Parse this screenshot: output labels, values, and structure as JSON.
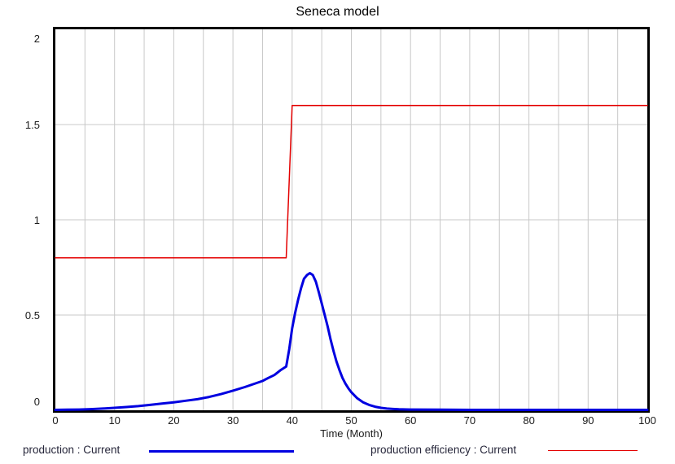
{
  "title": "Seneca model",
  "colors": {
    "background": "#ffffff",
    "axis_frame": "#000000",
    "grid": "#c8c8c8",
    "tick_text": "#1a1a1a",
    "production_line": "#0000e0",
    "efficiency_line": "#e40000"
  },
  "legend": [
    {
      "label": "production : Current",
      "color": "#0000e0",
      "line_width": 3
    },
    {
      "label": "production efficiency : Current",
      "color": "#e40000",
      "line_width": 1.5
    }
  ],
  "chart_data": {
    "type": "line",
    "title": "Seneca model",
    "xlabel": "Time (Month)",
    "ylabel": "",
    "xlim": [
      0,
      100
    ],
    "ylim": [
      0,
      2
    ],
    "x_tick_labels": [
      "0",
      "10",
      "20",
      "30",
      "40",
      "50",
      "60",
      "70",
      "80",
      "90",
      "100"
    ],
    "x_tick_values": [
      0,
      10,
      20,
      30,
      40,
      50,
      60,
      70,
      80,
      90,
      100
    ],
    "y_tick_labels": [
      "2",
      "1.5",
      "1",
      "0.5",
      "0"
    ],
    "y_tick_values": [
      2,
      1.5,
      1,
      0.5,
      0
    ],
    "x_grid_step": 5,
    "y_grid_lines": [
      0.5,
      1,
      1.5
    ],
    "grid": true,
    "legend_position": "bottom",
    "series": [
      {
        "name": "production : Current",
        "color": "#0000e0",
        "line_width": 3,
        "x": [
          0,
          2,
          4,
          6,
          8,
          10,
          12,
          14,
          16,
          18,
          20,
          22,
          24,
          26,
          28,
          30,
          32,
          34,
          35,
          36,
          37,
          38,
          39,
          39.5,
          40,
          40.5,
          41,
          41.5,
          42,
          42.5,
          43,
          43.5,
          44,
          44.5,
          45,
          45.5,
          46,
          46.5,
          47,
          47.5,
          48,
          48.5,
          49,
          49.5,
          50,
          51,
          52,
          53,
          54,
          55,
          56,
          57,
          58,
          60,
          65,
          70,
          80,
          90,
          100
        ],
        "y": [
          0.002,
          0.003,
          0.004,
          0.006,
          0.009,
          0.013,
          0.017,
          0.022,
          0.028,
          0.035,
          0.042,
          0.05,
          0.058,
          0.07,
          0.085,
          0.103,
          0.122,
          0.143,
          0.154,
          0.17,
          0.185,
          0.21,
          0.23,
          0.32,
          0.43,
          0.51,
          0.58,
          0.64,
          0.69,
          0.71,
          0.72,
          0.71,
          0.675,
          0.62,
          0.56,
          0.5,
          0.44,
          0.37,
          0.31,
          0.255,
          0.21,
          0.17,
          0.14,
          0.115,
          0.095,
          0.063,
          0.042,
          0.028,
          0.019,
          0.013,
          0.009,
          0.007,
          0.005,
          0.004,
          0.003,
          0.002,
          0.002,
          0.002,
          0.002
        ]
      },
      {
        "name": "production efficiency : Current",
        "color": "#e40000",
        "line_width": 1.5,
        "x": [
          0,
          39,
          40,
          100
        ],
        "y": [
          0.8,
          0.8,
          1.6,
          1.6
        ]
      }
    ]
  }
}
